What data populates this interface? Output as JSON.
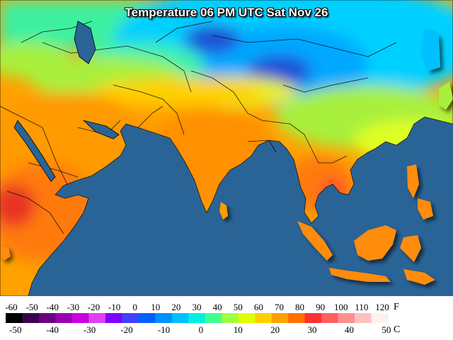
{
  "title": "Temperature 06 PM UTC Sat Nov 26",
  "legend": {
    "unit_f": "F",
    "unit_c": "C",
    "f_ticks": [
      "-60",
      "-50",
      "-40",
      "-30",
      "-20",
      "-10",
      "0",
      "10",
      "20",
      "30",
      "40",
      "50",
      "60",
      "70",
      "80",
      "90",
      "100",
      "110",
      "120"
    ],
    "c_ticks": [
      "-50",
      "-40",
      "-30",
      "-20",
      "-10",
      "0",
      "10",
      "20",
      "30",
      "40",
      "50"
    ],
    "palette_hex": [
      "#000000",
      "#3a0050",
      "#6a0080",
      "#9a00b0",
      "#cc00e0",
      "#e040f0",
      "#8000ff",
      "#4040ff",
      "#0060ff",
      "#0090ff",
      "#00c0ff",
      "#00f0e0",
      "#40ff90",
      "#a0ff40",
      "#e0ff00",
      "#ffd000",
      "#ffa000",
      "#ff7000",
      "#ff3030",
      "#ff6060",
      "#ff9090",
      "#ffc0c0",
      "#fff0f0"
    ]
  },
  "colors": {
    "ocean": "#2a6496",
    "cold": "#1f4fd6",
    "cool": "#00b4ff",
    "mild": "#3cf0a0",
    "warm_mid": "#a8f03c",
    "hot": "#ffa200",
    "very_hot": "#ff7a10",
    "extreme": "#e83020"
  }
}
